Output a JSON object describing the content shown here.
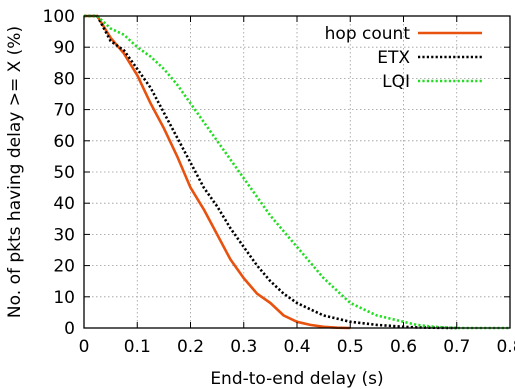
{
  "chart_data": {
    "type": "line",
    "title": "",
    "xlabel": "End-to-end delay (s)",
    "ylabel": "No. of pkts having delay >= X (%)",
    "xlim": [
      0,
      0.8
    ],
    "ylim": [
      0,
      100
    ],
    "xticks": [
      "0",
      "0.1",
      "0.2",
      "0.3",
      "0.4",
      "0.5",
      "0.6",
      "0.7",
      "0.8"
    ],
    "yticks": [
      "0",
      "10",
      "20",
      "30",
      "40",
      "50",
      "60",
      "70",
      "80",
      "90",
      "100"
    ],
    "grid": true,
    "legend_position": "top-right",
    "series": [
      {
        "name": "hop count",
        "color": "#e8520e",
        "dash": "solid",
        "x": [
          0,
          0.025,
          0.05,
          0.075,
          0.1,
          0.125,
          0.15,
          0.175,
          0.2,
          0.225,
          0.25,
          0.275,
          0.3,
          0.325,
          0.35,
          0.375,
          0.4,
          0.425,
          0.45,
          0.475,
          0.5
        ],
        "y": [
          100,
          100,
          93,
          88,
          81,
          72,
          64,
          55,
          45,
          38,
          30,
          22,
          16,
          11,
          8,
          4,
          2,
          1,
          0.4,
          0.1,
          0
        ]
      },
      {
        "name": "ETX",
        "color": "#000000",
        "dash": "dotted",
        "x": [
          0,
          0.025,
          0.05,
          0.075,
          0.1,
          0.125,
          0.15,
          0.175,
          0.2,
          0.225,
          0.25,
          0.275,
          0.3,
          0.325,
          0.35,
          0.375,
          0.4,
          0.425,
          0.45,
          0.475,
          0.5,
          0.525,
          0.55,
          0.575,
          0.6,
          0.625,
          0.65,
          0.7
        ],
        "y": [
          100,
          100,
          92,
          89,
          83,
          77,
          69,
          61,
          53,
          45,
          39,
          32,
          26,
          20,
          15,
          11,
          8,
          6,
          4,
          3,
          2,
          1.5,
          1,
          0.7,
          0.4,
          0.2,
          0.1,
          0
        ]
      },
      {
        "name": "LQI",
        "color": "#22dd22",
        "dash": "dotted",
        "x": [
          0,
          0.025,
          0.05,
          0.075,
          0.1,
          0.125,
          0.15,
          0.175,
          0.2,
          0.225,
          0.25,
          0.275,
          0.3,
          0.325,
          0.35,
          0.375,
          0.4,
          0.425,
          0.45,
          0.475,
          0.5,
          0.525,
          0.55,
          0.575,
          0.6,
          0.625,
          0.65,
          0.675,
          0.7,
          0.75,
          0.8
        ],
        "y": [
          100,
          100,
          96,
          94,
          90,
          87,
          83,
          78,
          72,
          66,
          60,
          54,
          48,
          42,
          36,
          31,
          26,
          21,
          16,
          12,
          8,
          6,
          4,
          3,
          2,
          1,
          0.5,
          0.2,
          0,
          0,
          0
        ]
      }
    ]
  }
}
